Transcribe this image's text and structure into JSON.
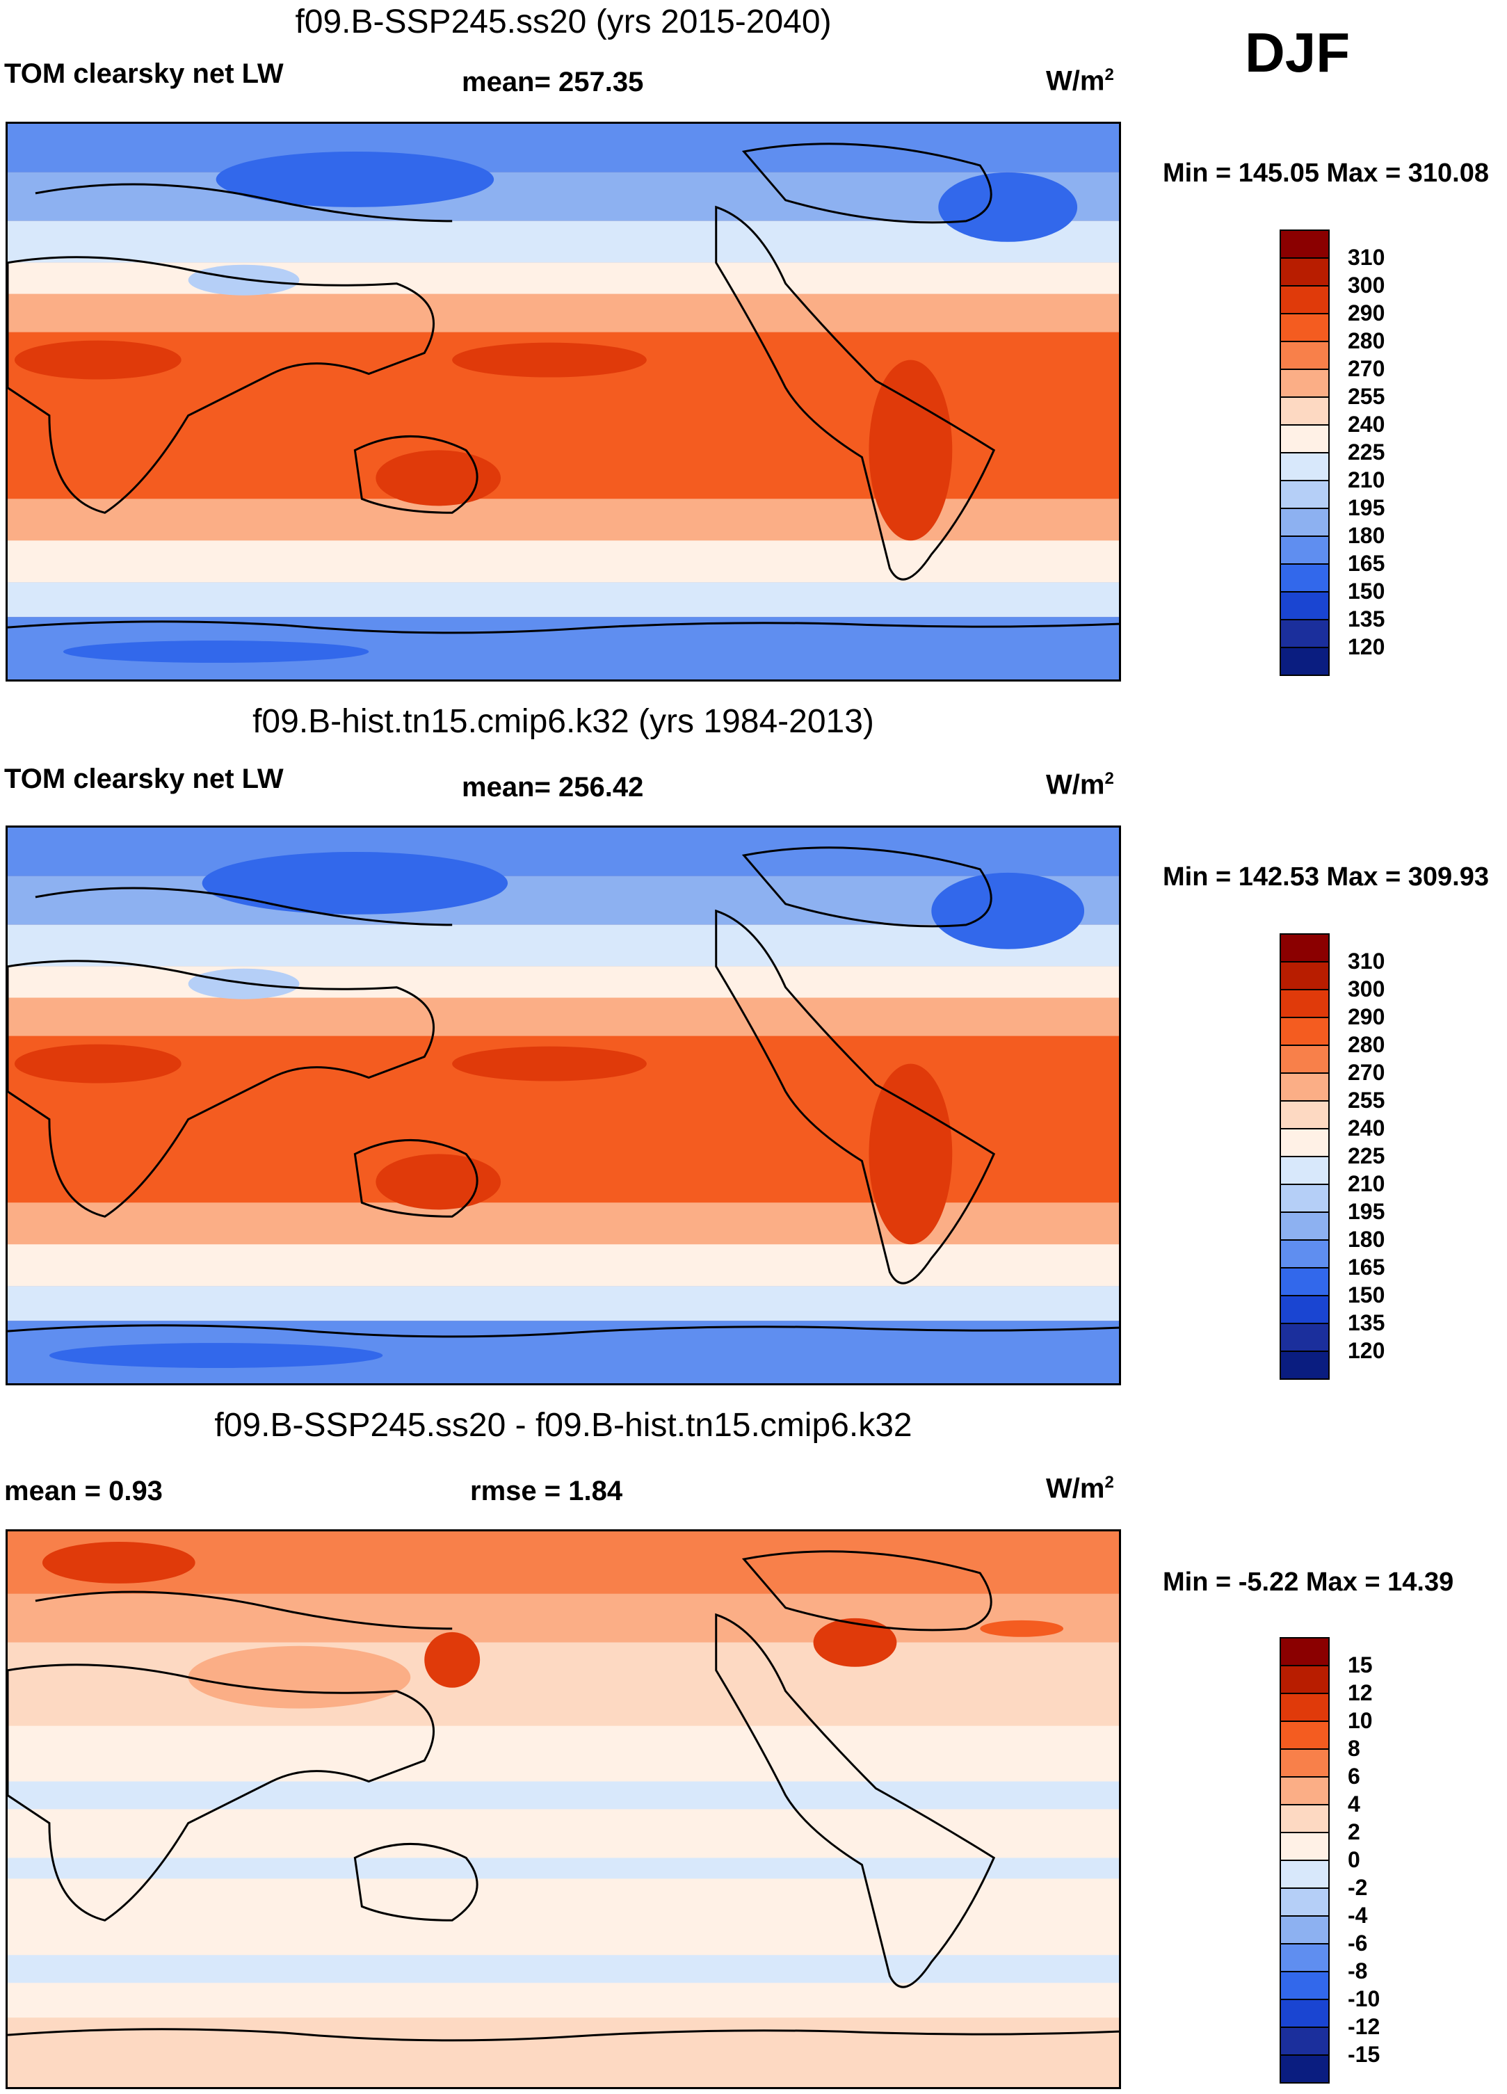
{
  "season": "DJF",
  "panels": [
    {
      "title": "f09.B-SSP245.ss20 (yrs 2015-2040)",
      "left_label": "TOM clearsky net LW",
      "center_label": "mean= 257.35",
      "units": "W/m",
      "units_sup": "2",
      "minmax": "Min = 145.05 Max = 310.08"
    },
    {
      "title": "f09.B-hist.tn15.cmip6.k32 (yrs 1984-2013)",
      "left_label": "TOM clearsky net LW",
      "center_label": "mean= 256.42",
      "units": "W/m",
      "units_sup": "2",
      "minmax": "Min = 142.53 Max = 309.93"
    },
    {
      "title": "f09.B-SSP245.ss20 - f09.B-hist.tn15.cmip6.k32",
      "left_label": "mean =   0.93",
      "center_label": "rmse =   1.84",
      "units": "W/m",
      "units_sup": "2",
      "minmax": "Min =  -5.22 Max =  14.39"
    }
  ],
  "chart_data": [
    {
      "type": "heatmap",
      "title": "f09.B-SSP245.ss20 (yrs 2015-2040)",
      "variable": "TOM clearsky net LW",
      "mean": 257.35,
      "min": 145.05,
      "max": 310.08,
      "units": "W/m2",
      "colorbar_levels": [
        "310",
        "300",
        "290",
        "280",
        "270",
        "255",
        "240",
        "225",
        "210",
        "195",
        "180",
        "165",
        "150",
        "135",
        "120"
      ],
      "colorbar_colors": [
        "#8b0000",
        "#b81d00",
        "#e03a0a",
        "#f45c20",
        "#f8804a",
        "#fbae86",
        "#fdd9c2",
        "#fff1e6",
        "#d8e8fb",
        "#b5cff7",
        "#8db1f1",
        "#5f8ef0",
        "#3268eb",
        "#1a45d2",
        "#1b2f9c",
        "#0a1d80"
      ]
    },
    {
      "type": "heatmap",
      "title": "f09.B-hist.tn15.cmip6.k32 (yrs 1984-2013)",
      "variable": "TOM clearsky net LW",
      "mean": 256.42,
      "min": 142.53,
      "max": 309.93,
      "units": "W/m2",
      "colorbar_levels": [
        "310",
        "300",
        "290",
        "280",
        "270",
        "255",
        "240",
        "225",
        "210",
        "195",
        "180",
        "165",
        "150",
        "135",
        "120"
      ],
      "colorbar_colors": [
        "#8b0000",
        "#b81d00",
        "#e03a0a",
        "#f45c20",
        "#f8804a",
        "#fbae86",
        "#fdd9c2",
        "#fff1e6",
        "#d8e8fb",
        "#b5cff7",
        "#8db1f1",
        "#5f8ef0",
        "#3268eb",
        "#1a45d2",
        "#1b2f9c",
        "#0a1d80"
      ]
    },
    {
      "type": "heatmap",
      "title": "f09.B-SSP245.ss20 - f09.B-hist.tn15.cmip6.k32",
      "mean": 0.93,
      "rmse": 1.84,
      "min": -5.22,
      "max": 14.39,
      "units": "W/m2",
      "colorbar_levels": [
        "15",
        "12",
        "10",
        "8",
        "6",
        "4",
        "2",
        "0",
        "-2",
        "-4",
        "-6",
        "-8",
        "-10",
        "-12",
        "-15"
      ],
      "colorbar_colors": [
        "#8b0000",
        "#b81d00",
        "#e03a0a",
        "#f45c20",
        "#f8804a",
        "#fbae86",
        "#fdd9c2",
        "#fff1e6",
        "#d8e8fb",
        "#b5cff7",
        "#8db1f1",
        "#5f8ef0",
        "#3268eb",
        "#1a45d2",
        "#1b2f9c",
        "#0a1d80"
      ]
    }
  ]
}
